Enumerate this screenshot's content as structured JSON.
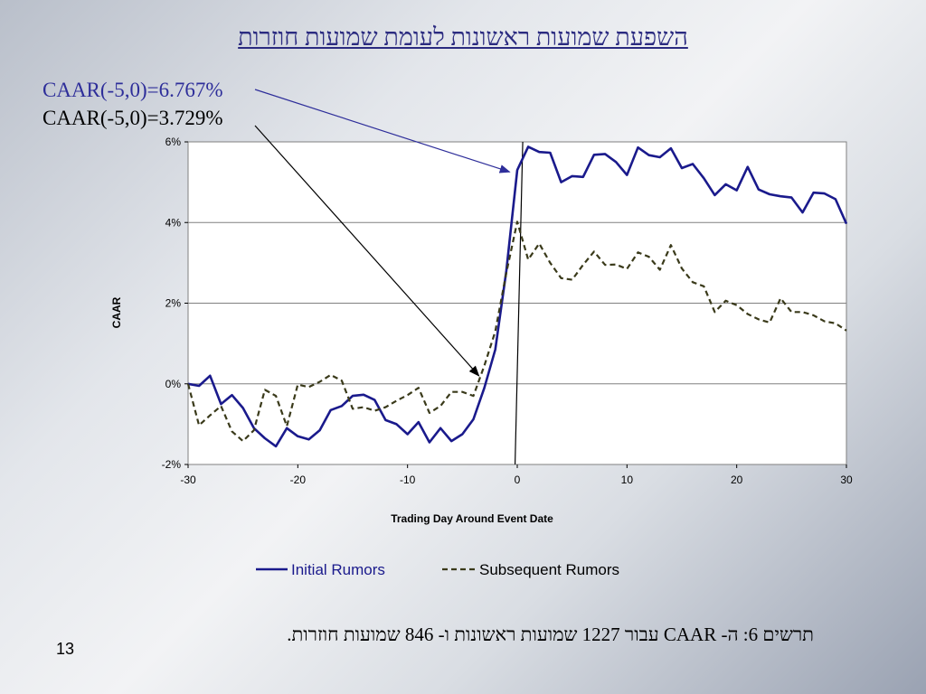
{
  "slide": {
    "title": "השפעת שמועות ראשונות לעומת שמועות חוזרות",
    "annotation_initial": "CAAR(-5,0)=6.767%",
    "annotation_subsequent": "CAAR(-5,0)=3.729%",
    "caption": "תרשים 6: ה- CAAR עבור 1227 שמועות ראשונות ו- 846 שמועות חוזרות.",
    "page_number": "13"
  },
  "colors": {
    "initial": "#1a1a8c",
    "subsequent": "#3a3a1a",
    "annotation_initial": "#2e2e9a",
    "annotation_subsequent": "#000000",
    "grid": "#808080"
  },
  "chart_data": {
    "type": "line",
    "title": "",
    "xlabel": "Trading Day Around Event Date",
    "ylabel": "CAAR",
    "xlim": [
      -30,
      30
    ],
    "ylim": [
      -2,
      6
    ],
    "x_ticks": [
      -30,
      -20,
      -10,
      0,
      10,
      20,
      30
    ],
    "x_tick_labels": [
      "-30",
      "-20",
      "-10",
      "0",
      "10",
      "20",
      "30"
    ],
    "y_ticks": [
      -2,
      0,
      2,
      4,
      6
    ],
    "y_tick_labels": [
      "-2%",
      "0%",
      "2%",
      "4%",
      "6%"
    ],
    "grid": "horizontal",
    "legend_position": "bottom",
    "x": [
      -30,
      -29,
      -28,
      -27,
      -26,
      -25,
      -24,
      -23,
      -22,
      -21,
      -20,
      -19,
      -18,
      -17,
      -16,
      -15,
      -14,
      -13,
      -12,
      -11,
      -10,
      -9,
      -8,
      -7,
      -6,
      -5,
      -4,
      -3,
      -2,
      -1,
      0,
      1,
      2,
      3,
      4,
      5,
      6,
      7,
      8,
      9,
      10,
      11,
      12,
      13,
      14,
      15,
      16,
      17,
      18,
      19,
      20,
      21,
      22,
      23,
      24,
      25,
      26,
      27,
      28,
      29,
      30
    ],
    "series": [
      {
        "name": "Initial Rumors",
        "style": "solid",
        "values": [
          0.0,
          -0.05,
          0.2,
          -0.5,
          -0.28,
          -0.6,
          -1.1,
          -1.35,
          -1.55,
          -1.1,
          -1.3,
          -1.38,
          -1.15,
          -0.65,
          -0.55,
          -0.3,
          -0.27,
          -0.4,
          -0.9,
          -1.0,
          -1.25,
          -0.95,
          -1.45,
          -1.1,
          -1.42,
          -1.25,
          -0.88,
          -0.1,
          0.85,
          2.8,
          5.3,
          5.88,
          5.75,
          5.73,
          5.0,
          5.15,
          5.13,
          5.68,
          5.7,
          5.5,
          5.18,
          5.86,
          5.67,
          5.62,
          5.84,
          5.35,
          5.45,
          5.1,
          4.68,
          4.95,
          4.8,
          5.38,
          4.82,
          4.7,
          4.65,
          4.62,
          4.25,
          4.74,
          4.72,
          4.58,
          3.97
        ]
      },
      {
        "name": "Subsequent Rumors",
        "style": "dashed",
        "values": [
          0.0,
          -1.03,
          -0.78,
          -0.55,
          -1.18,
          -1.42,
          -1.15,
          -0.15,
          -0.3,
          -1.05,
          -0.02,
          -0.08,
          0.05,
          0.22,
          0.08,
          -0.62,
          -0.58,
          -0.67,
          -0.58,
          -0.42,
          -0.28,
          -0.1,
          -0.72,
          -0.55,
          -0.2,
          -0.2,
          -0.3,
          0.45,
          1.3,
          2.75,
          4.02,
          3.08,
          3.48,
          3.0,
          2.62,
          2.58,
          2.95,
          3.28,
          2.95,
          2.96,
          2.85,
          3.26,
          3.15,
          2.83,
          3.44,
          2.86,
          2.52,
          2.42,
          1.78,
          2.06,
          1.95,
          1.73,
          1.6,
          1.52,
          2.12,
          1.78,
          1.78,
          1.7,
          1.55,
          1.5,
          1.32
        ]
      }
    ]
  }
}
